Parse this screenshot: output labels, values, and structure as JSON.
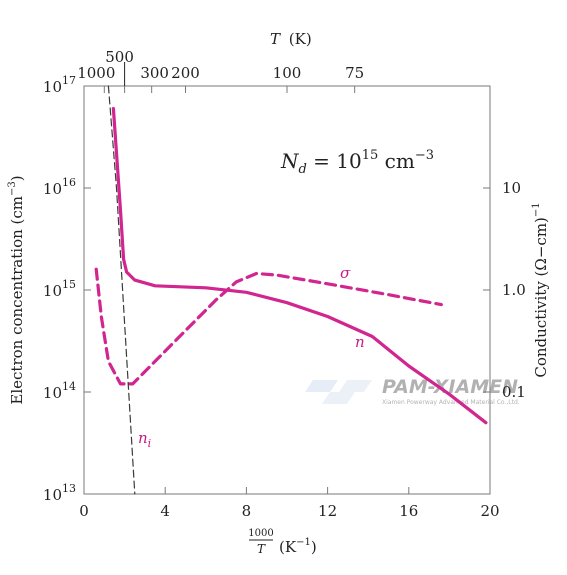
{
  "chart_data": {
    "type": "line",
    "scale": "log",
    "xlabel_numerator": "1000",
    "xlabel_denominator": "T",
    "xlabel_unit": "(K",
    "xlabel_unit_sup": "−1",
    "xlabel_close": ")",
    "x_ticks": [
      "0",
      "4",
      "8",
      "12",
      "16",
      "20"
    ],
    "xlim": [
      0,
      20
    ],
    "ylabel_left": "Electron concentration (cm",
    "ylabel_left_sup": "−3",
    "ylabel_left_close": ")",
    "ylim_left": [
      10000000000000.0,
      1e+17
    ],
    "left_ticks": [
      {
        "base": "10",
        "exp": "13",
        "value": 10000000000000.0
      },
      {
        "base": "10",
        "exp": "14",
        "value": 100000000000000.0
      },
      {
        "base": "10",
        "exp": "15",
        "value": 1000000000000000.0
      },
      {
        "base": "10",
        "exp": "16",
        "value": 1e+16
      },
      {
        "base": "10",
        "exp": "17",
        "value": 1e+17
      }
    ],
    "ylabel_right": "Conductivity (Ω−cm)",
    "ylabel_right_sup": "−1",
    "right_ticks": [
      {
        "label": "10",
        "value": 10
      },
      {
        "label": "1.0",
        "value": 1.0
      },
      {
        "label": "0.1",
        "value": 0.1
      }
    ],
    "ylim_right": [
      0.01,
      100
    ],
    "top_axis_title": "T",
    "top_axis_unit": "(K)",
    "top_ticks": [
      {
        "label": "1000",
        "T": 1000
      },
      {
        "label": "500",
        "T": 500
      },
      {
        "label": "300",
        "T": 300
      },
      {
        "label": "200",
        "T": 200
      },
      {
        "label": "100",
        "T": 100
      },
      {
        "label": "75",
        "T": 75
      }
    ],
    "annotation_nd": {
      "base": "N",
      "sub": "d",
      "eq": " = 10",
      "exp": "15",
      "unit": " cm",
      "unit_exp": "−3"
    },
    "series": [
      {
        "name": "n",
        "axis": "left",
        "style": "solid",
        "color": "#d1258f",
        "points": [
          [
            1.45,
            6e+16
          ],
          [
            1.6,
            2.2e+16
          ],
          [
            1.8,
            6000000000000000.0
          ],
          [
            1.95,
            2000000000000000.0
          ],
          [
            2.1,
            1500000000000000.0
          ],
          [
            2.5,
            1250000000000000.0
          ],
          [
            3.5,
            1100000000000000.0
          ],
          [
            6.0,
            1050000000000000.0
          ],
          [
            8.0,
            950000000000000.0
          ],
          [
            10.0,
            750000000000000.0
          ],
          [
            12.0,
            550000000000000.0
          ],
          [
            14.2,
            350000000000000.0
          ],
          [
            16.0,
            180000000000000.0
          ],
          [
            18.0,
            95000000000000.0
          ],
          [
            19.8,
            50000000000000.0
          ]
        ]
      },
      {
        "name": "σ",
        "axis": "right",
        "style": "dashed",
        "color": "#d1258f",
        "points": [
          [
            0.6,
            1.6
          ],
          [
            0.85,
            0.55
          ],
          [
            1.2,
            0.2
          ],
          [
            1.8,
            0.12
          ],
          [
            2.4,
            0.12
          ],
          [
            3.5,
            0.2
          ],
          [
            5.0,
            0.4
          ],
          [
            6.5,
            0.8
          ],
          [
            7.5,
            1.2
          ],
          [
            8.5,
            1.45
          ],
          [
            9.5,
            1.4
          ],
          [
            12.0,
            1.15
          ],
          [
            15.0,
            0.9
          ],
          [
            17.6,
            0.72
          ]
        ]
      },
      {
        "name": "n",
        "name_sub": "i",
        "axis": "left",
        "style": "dashed",
        "color": "#3a3a3a",
        "points": [
          [
            1.2,
            1e+17
          ],
          [
            1.6,
            1e+16
          ],
          [
            1.9,
            1000000000000000.0
          ],
          [
            2.2,
            100000000000000.0
          ],
          [
            2.5,
            10000000000000.0
          ]
        ]
      }
    ]
  },
  "watermark": {
    "title": "PAM-XIAMEN",
    "subtitle": "Xiamen Powerway Advanced Material Co.,Ltd."
  }
}
